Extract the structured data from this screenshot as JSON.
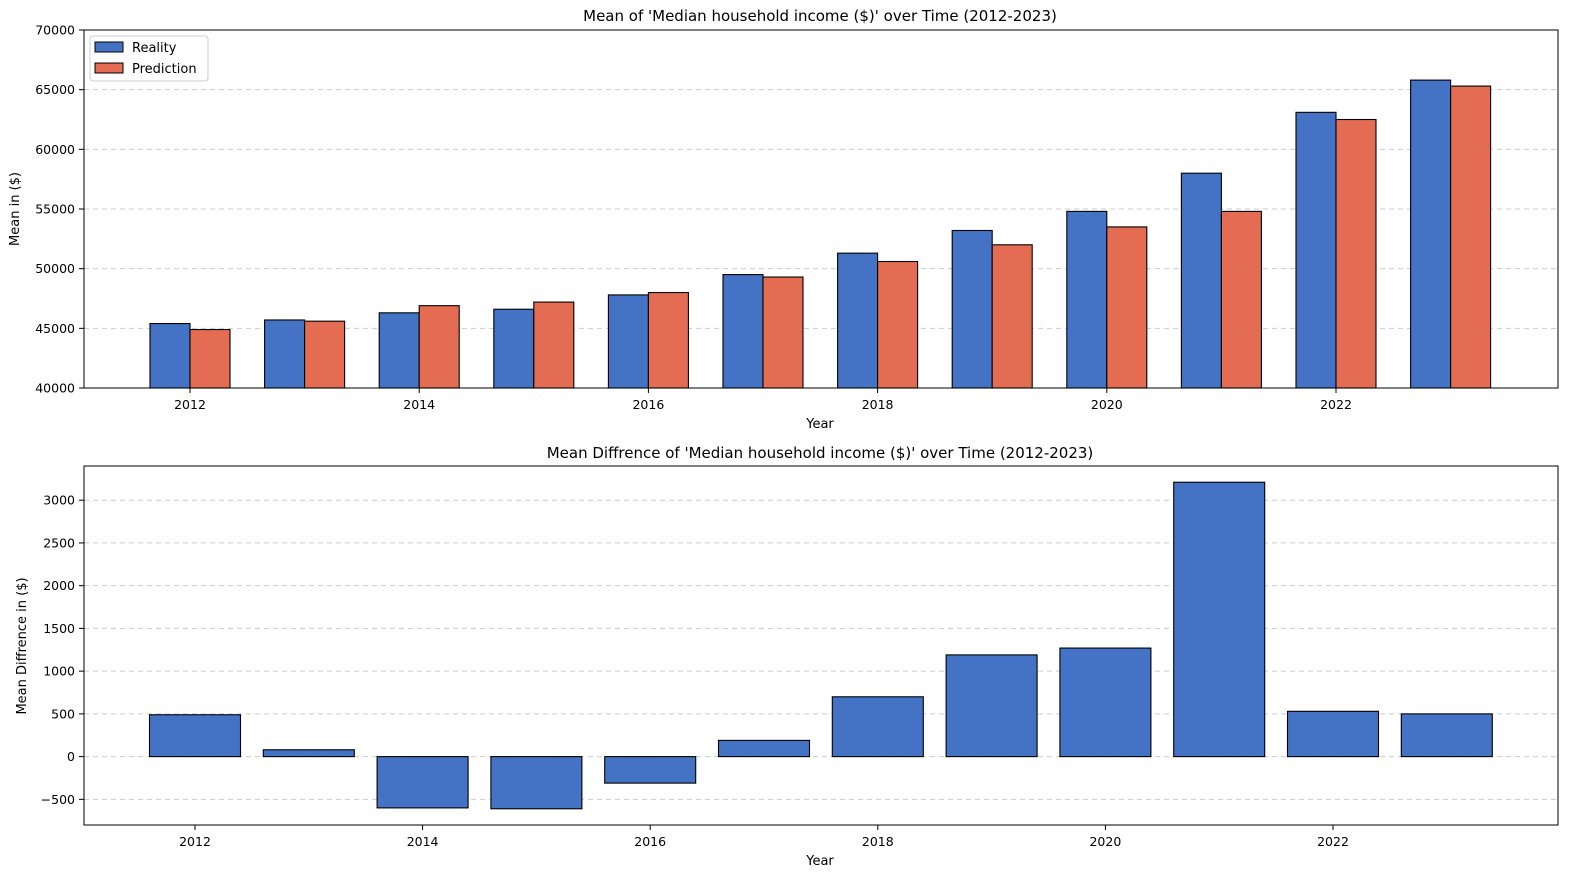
{
  "chart_data": [
    {
      "type": "bar",
      "title": "Mean of 'Median household income ($)' over Time (2012-2023)",
      "xlabel": "Year",
      "ylabel": "Mean in ($)",
      "categories": [
        2012,
        2013,
        2014,
        2015,
        2016,
        2017,
        2018,
        2019,
        2020,
        2021,
        2022,
        2023
      ],
      "xticks": [
        "2012",
        "2014",
        "2016",
        "2018",
        "2020",
        "2022"
      ],
      "ylim": [
        40000,
        70000
      ],
      "yticks": [
        40000,
        45000,
        50000,
        55000,
        60000,
        65000,
        70000
      ],
      "grid": "y-dashed",
      "legend_position": "top-left",
      "series": [
        {
          "name": "Reality",
          "color": "#4472c4",
          "values": [
            45400,
            45700,
            46300,
            46600,
            47800,
            49500,
            51300,
            53200,
            54800,
            58000,
            63100,
            65800
          ]
        },
        {
          "name": "Prediction",
          "color": "#e46c52",
          "values": [
            44900,
            45600,
            46900,
            47200,
            48000,
            49300,
            50600,
            52000,
            53500,
            54800,
            62500,
            65300
          ]
        }
      ]
    },
    {
      "type": "bar",
      "title": "Mean Diffrence of 'Median household income ($)' over Time (2012-2023)",
      "xlabel": "Year",
      "ylabel": "Mean Diffrence in ($)",
      "categories": [
        2012,
        2013,
        2014,
        2015,
        2016,
        2017,
        2018,
        2019,
        2020,
        2021,
        2022,
        2023
      ],
      "xticks": [
        "2012",
        "2014",
        "2016",
        "2018",
        "2020",
        "2022"
      ],
      "ylim": [
        -800,
        3400
      ],
      "yticks": [
        -500,
        0,
        500,
        1000,
        1500,
        2000,
        2500,
        3000
      ],
      "grid": "y-dashed",
      "series": [
        {
          "name": "",
          "color": "#4472c4",
          "values": [
            490,
            80,
            -600,
            -610,
            -310,
            190,
            700,
            1190,
            1270,
            3210,
            530,
            500
          ]
        }
      ]
    }
  ]
}
